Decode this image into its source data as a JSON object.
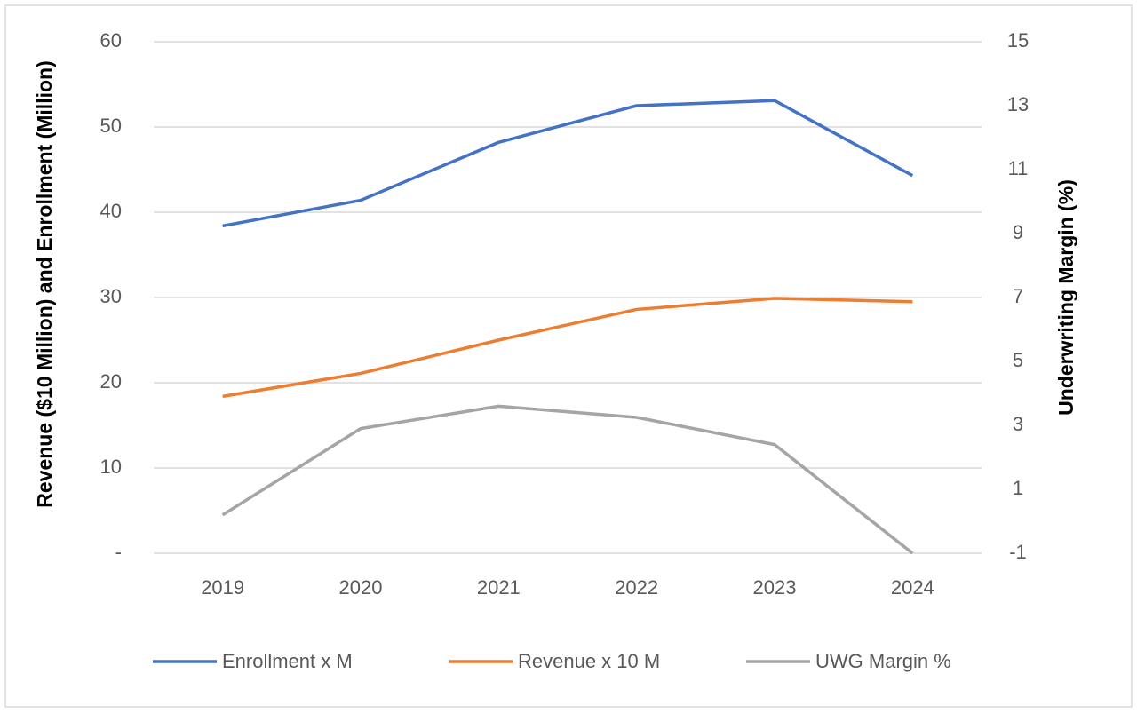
{
  "chart_data": {
    "type": "line",
    "y_label": "Revenue ($10 Million) and Enrollment (Million)",
    "y2_label": "Underwriting Margin (%)",
    "categories": [
      "2019",
      "2020",
      "2021",
      "2022",
      "2023",
      "2024"
    ],
    "series": [
      {
        "name": "Enrollment x M",
        "color": "#4472c4",
        "values": [
          38.4,
          41.4,
          48.2,
          52.5,
          53.1,
          44.3
        ]
      },
      {
        "name": "Revenue x 10 M",
        "color": "#ed7d31",
        "values": [
          18.4,
          21.1,
          25.0,
          28.6,
          29.9,
          29.5
        ]
      },
      {
        "name": "UWG Margin %",
        "color": "#a5a5a5",
        "axis": "y2",
        "values": [
          0.2,
          2.9,
          3.6,
          3.25,
          2.4,
          -1
        ]
      }
    ],
    "ylim": [
      0,
      60
    ],
    "yticks": [
      {
        "value": 0,
        "label": "-"
      },
      10,
      20,
      30,
      40,
      50,
      60
    ],
    "y2lim": [
      -1,
      15
    ],
    "y2ticks": [
      -1,
      1,
      3,
      5,
      7,
      9,
      11,
      13,
      15
    ],
    "grid": true,
    "legend": "bottom"
  }
}
